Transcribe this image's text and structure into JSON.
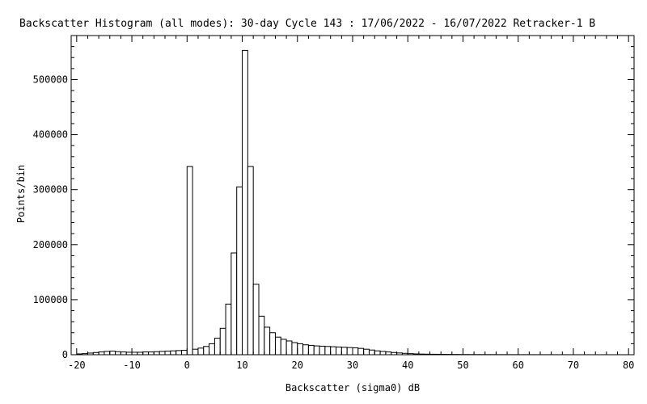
{
  "chart_data": {
    "type": "bar",
    "title": "Backscatter Histogram (all modes): 30-day Cycle 143 : 17/06/2022 - 16/07/2022 Retracker-1 B",
    "xlabel": "Backscatter (sigma0) dB",
    "ylabel": "Points/bin",
    "xlim": [
      -21,
      81
    ],
    "ylim": [
      0,
      580000
    ],
    "xticks": [
      -20,
      -10,
      0,
      10,
      20,
      30,
      40,
      50,
      60,
      70,
      80
    ],
    "xtick_labels": [
      "-20",
      "-10",
      "0",
      "10",
      "20",
      "30",
      "40",
      "50",
      "60",
      "70",
      "80"
    ],
    "yticks": [
      0,
      100000,
      200000,
      300000,
      400000,
      500000
    ],
    "ytick_labels": [
      "0",
      "100000",
      "200000",
      "300000",
      "400000",
      "500000"
    ],
    "bin_width": 1,
    "bins_x": [
      -20,
      -19,
      -18,
      -17,
      -16,
      -15,
      -14,
      -13,
      -12,
      -11,
      -10,
      -9,
      -8,
      -7,
      -6,
      -5,
      -4,
      -3,
      -2,
      -1,
      0,
      1,
      2,
      3,
      4,
      5,
      6,
      7,
      8,
      9,
      10,
      11,
      12,
      13,
      14,
      15,
      16,
      17,
      18,
      19,
      20,
      21,
      22,
      23,
      24,
      25,
      26,
      27,
      28,
      29,
      30,
      31,
      32,
      33,
      34,
      35,
      36,
      37,
      38,
      39,
      40,
      41,
      42,
      43,
      44,
      45,
      46,
      47,
      48,
      49,
      50,
      51,
      52,
      53,
      54,
      55,
      56,
      57,
      58,
      59,
      60,
      61,
      62,
      63,
      64,
      65,
      66,
      67,
      68,
      69,
      70,
      71,
      72,
      73,
      74,
      75,
      76,
      77,
      78,
      79,
      80
    ],
    "values": [
      1500,
      2000,
      3000,
      4000,
      5000,
      6000,
      6500,
      5500,
      5000,
      4500,
      4500,
      4500,
      5000,
      5000,
      5500,
      6000,
      6500,
      7000,
      7500,
      8000,
      342000,
      10000,
      12000,
      15000,
      20000,
      30000,
      48000,
      92000,
      185000,
      305000,
      553000,
      342000,
      128000,
      70000,
      50000,
      40000,
      32000,
      28000,
      25000,
      22000,
      20000,
      18000,
      17000,
      16000,
      15500,
      15000,
      14500,
      14000,
      13500,
      13000,
      12500,
      11500,
      10000,
      8500,
      7000,
      6000,
      5000,
      4000,
      3200,
      2500,
      2000,
      1500,
      1200,
      1000,
      900,
      800,
      700,
      600,
      500,
      450,
      400,
      350,
      300,
      280,
      260,
      240,
      220,
      200,
      180,
      160,
      150,
      140,
      130,
      120,
      110,
      100,
      90,
      80,
      70,
      60,
      50,
      45,
      40,
      35,
      30,
      25,
      20,
      15,
      10,
      10,
      5
    ]
  }
}
